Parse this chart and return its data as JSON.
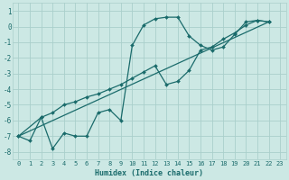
{
  "xlabel": "Humidex (Indice chaleur)",
  "ylabel": "",
  "x_ticks": [
    0,
    1,
    2,
    3,
    4,
    5,
    6,
    7,
    8,
    9,
    10,
    11,
    12,
    13,
    14,
    15,
    16,
    17,
    18,
    19,
    20,
    21,
    22,
    23
  ],
  "ylim": [
    -8.5,
    1.5
  ],
  "xlim": [
    -0.5,
    23.5
  ],
  "yticks": [
    1,
    0,
    -1,
    -2,
    -3,
    -4,
    -5,
    -6,
    -7,
    -8
  ],
  "bg_color": "#cce8e4",
  "grid_color": "#aacfcb",
  "line_color": "#1a6b6b",
  "line1_x": [
    0,
    1,
    2,
    3,
    4,
    5,
    6,
    7,
    8,
    9,
    10,
    11,
    12,
    13,
    14,
    15,
    16,
    17,
    18,
    19,
    20,
    21,
    22
  ],
  "line1_y": [
    -7.0,
    -7.3,
    -5.8,
    -7.8,
    -6.8,
    -7.0,
    -7.0,
    -5.5,
    -5.3,
    -6.0,
    -1.2,
    0.1,
    0.5,
    0.6,
    0.6,
    -0.6,
    -1.2,
    -1.5,
    -1.3,
    -0.5,
    0.3,
    0.4,
    0.3
  ],
  "line2_x": [
    0,
    2,
    3,
    4,
    5,
    6,
    7,
    8,
    9,
    10,
    11,
    12,
    13,
    14,
    15,
    16,
    17,
    18,
    19,
    20,
    21,
    22
  ],
  "line2_y": [
    -7.0,
    -5.8,
    -5.5,
    -5.0,
    -4.8,
    -4.5,
    -4.3,
    -4.0,
    -3.7,
    -3.3,
    -2.9,
    -2.5,
    -3.7,
    -3.5,
    -2.8,
    -1.5,
    -1.3,
    -0.8,
    -0.4,
    0.1,
    0.4,
    0.3
  ],
  "line3_x": [
    0,
    22
  ],
  "line3_y": [
    -7.0,
    0.3
  ]
}
